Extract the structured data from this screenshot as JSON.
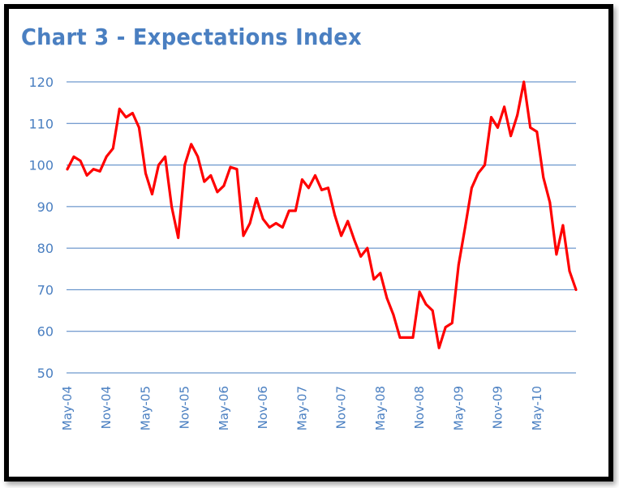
{
  "chart_data": {
    "type": "line",
    "title": "Chart 3 - Expectations Index",
    "xlabel": "",
    "ylabel": "",
    "ylim": [
      50,
      120
    ],
    "yticks": [
      50,
      60,
      70,
      80,
      90,
      100,
      110,
      120
    ],
    "xtick_labels": [
      "May-04",
      "Nov-04",
      "May-05",
      "Nov-05",
      "May-06",
      "Nov-06",
      "May-07",
      "Nov-07",
      "May-08",
      "Nov-08",
      "May-09",
      "Nov-09",
      "May-10"
    ],
    "grid": true,
    "line_color": "#ff0000",
    "grid_color": "#4a7fc1",
    "text_color": "#4a7fc1",
    "series": [
      {
        "values": [
          99.0,
          102.0,
          101.0,
          97.5,
          99.0,
          98.5,
          102.0,
          104.0,
          113.5,
          111.5,
          112.5,
          109.0,
          98.0,
          93.0,
          100.0,
          102.0,
          90.0,
          82.5,
          100.0,
          105.0,
          102.0,
          96.0,
          97.5,
          93.5,
          95.0,
          99.5,
          99.0,
          83.0,
          86.0,
          92.0,
          87.0,
          85.0,
          86.0,
          85.0,
          89.0,
          89.0,
          96.5,
          94.5,
          97.5,
          94.0,
          94.5,
          88.0,
          83.0,
          86.5,
          82.0,
          78.0,
          80.0,
          72.5,
          74.0,
          68.0,
          64.0,
          58.5,
          58.5,
          58.5,
          69.5,
          66.5,
          65.0,
          56.0,
          61.0,
          62.0,
          76.0,
          85.0,
          94.5,
          98.0,
          100.0,
          111.5,
          109.0,
          114.0,
          107.0,
          112.0,
          120.0,
          109.0,
          108.0,
          97.0,
          91.0,
          78.5,
          85.5,
          74.5,
          70.0
        ]
      }
    ]
  }
}
